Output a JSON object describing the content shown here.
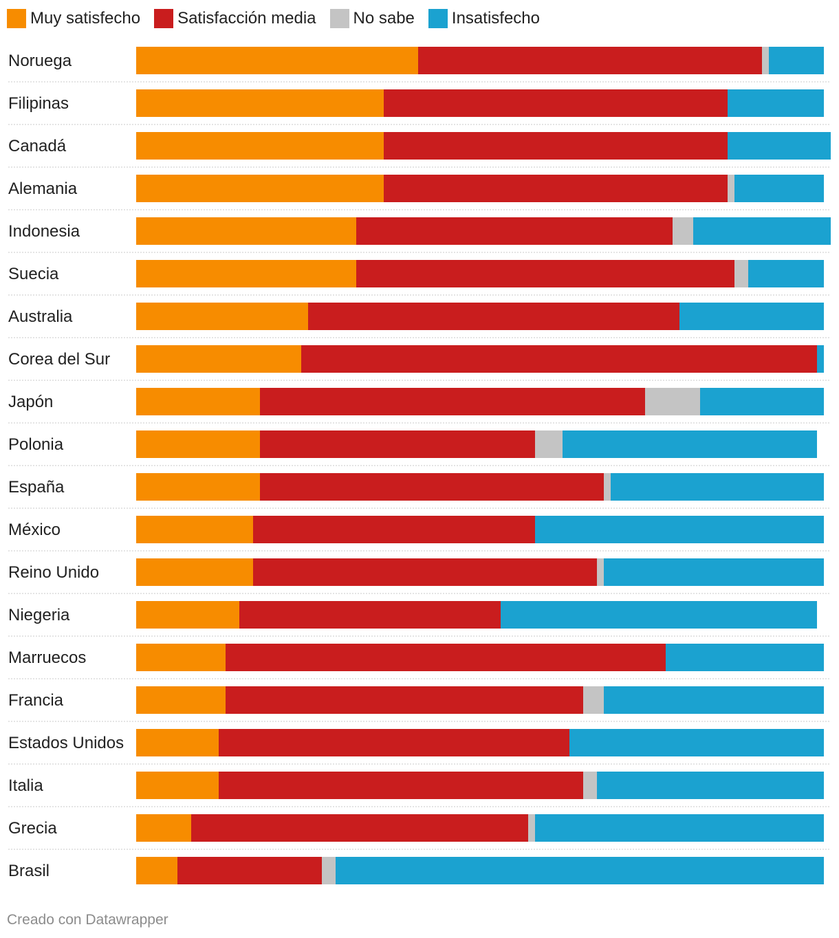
{
  "legend": [
    {
      "label": "Muy satisfecho",
      "color": "#f78c00"
    },
    {
      "label": "Satisfacción media",
      "color": "#c91d1e"
    },
    {
      "label": "No sabe",
      "color": "#c4c4c4"
    },
    {
      "label": "Insatisfecho",
      "color": "#1ba2d0"
    }
  ],
  "footer": "Creado con Datawrapper",
  "chart_data": {
    "type": "bar",
    "orientation": "horizontal",
    "stacked": true,
    "title": "",
    "xlabel": "",
    "ylabel": "",
    "xlim": [
      0,
      100
    ],
    "grid": false,
    "legend_position": "top-left",
    "categories": [
      "Noruega",
      "Filipinas",
      "Canadá",
      "Alemania",
      "Indonesia",
      "Suecia",
      "Australia",
      "Corea del Sur",
      "Japón",
      "Polonia",
      "España",
      "México",
      "Reino Unido",
      "Niegeria",
      "Marruecos",
      "Francia",
      "Estados Unidos",
      "Italia",
      "Grecia",
      "Brasil"
    ],
    "series": [
      {
        "name": "Muy satisfecho",
        "color": "#f78c00",
        "values": [
          41,
          36,
          36,
          36,
          32,
          32,
          25,
          24,
          18,
          18,
          18,
          17,
          17,
          15,
          13,
          13,
          12,
          12,
          8,
          6
        ]
      },
      {
        "name": "Satisfacción media",
        "color": "#c91d1e",
        "values": [
          50,
          50,
          50,
          50,
          46,
          55,
          54,
          75,
          56,
          40,
          50,
          41,
          50,
          38,
          64,
          52,
          51,
          53,
          49,
          21
        ]
      },
      {
        "name": "No sabe",
        "color": "#c4c4c4",
        "values": [
          1,
          0,
          0,
          1,
          3,
          2,
          0,
          0,
          8,
          4,
          1,
          0,
          1,
          0,
          0,
          3,
          0,
          2,
          1,
          2
        ]
      },
      {
        "name": "Insatisfecho",
        "color": "#1ba2d0",
        "values": [
          8,
          14,
          15,
          13,
          20,
          11,
          21,
          1,
          18,
          37,
          31,
          42,
          32,
          46,
          23,
          32,
          37,
          33,
          42,
          71
        ]
      }
    ]
  }
}
